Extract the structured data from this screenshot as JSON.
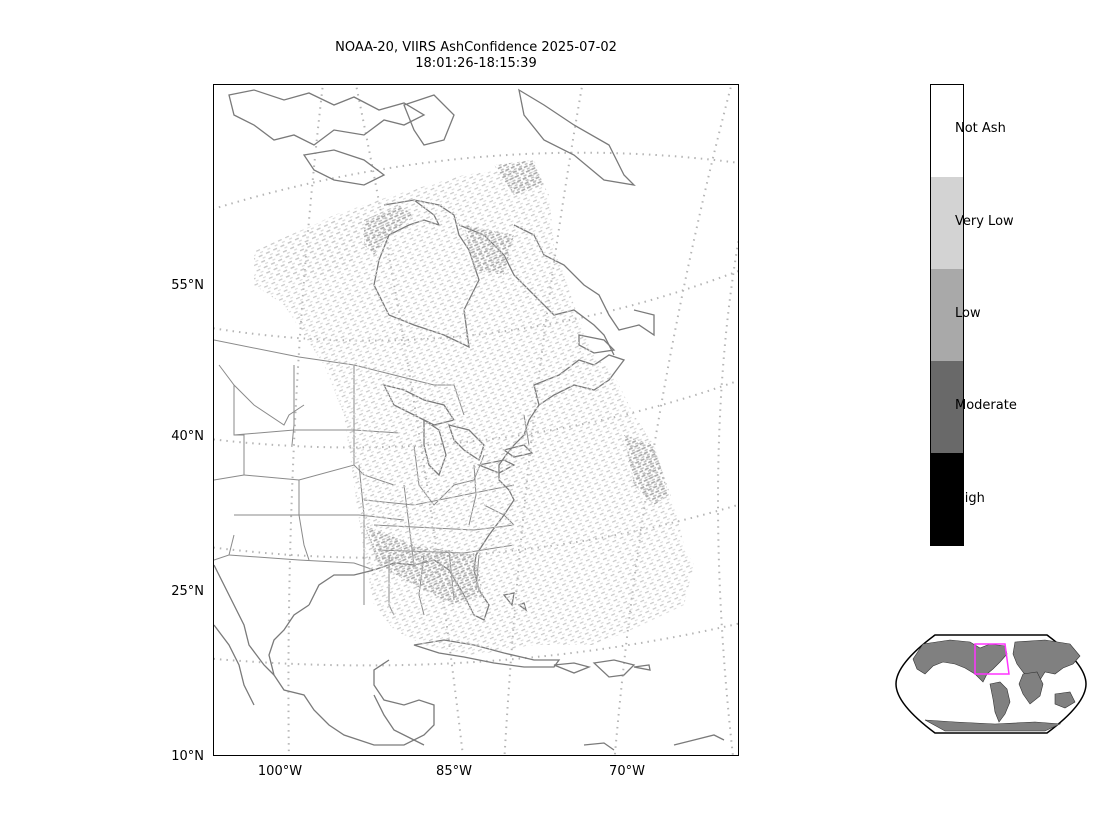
{
  "figure": {
    "title_line1": "NOAA-20, VIIRS AshConfidence 2025-07-02",
    "title_line2": "18:01:26-18:15:39"
  },
  "axes": {
    "lat_labels": [
      "55°N",
      "40°N",
      "25°N",
      "10°N"
    ],
    "lon_labels": [
      "100°W",
      "85°W",
      "70°W"
    ]
  },
  "colorbar": {
    "categories": [
      {
        "label": "Not Ash",
        "color": "#ffffff"
      },
      {
        "label": "Very Low",
        "color": "#d3d3d3"
      },
      {
        "label": "Low",
        "color": "#a9a9a9"
      },
      {
        "label": "Moderate",
        "color": "#696969"
      },
      {
        "label": "High",
        "color": "#000000"
      }
    ]
  },
  "colors": {
    "coastline": "#7a7a7a",
    "gridline": "#b5b5b5",
    "land_inset": "#808080",
    "inset_box": "#ff33ff"
  }
}
